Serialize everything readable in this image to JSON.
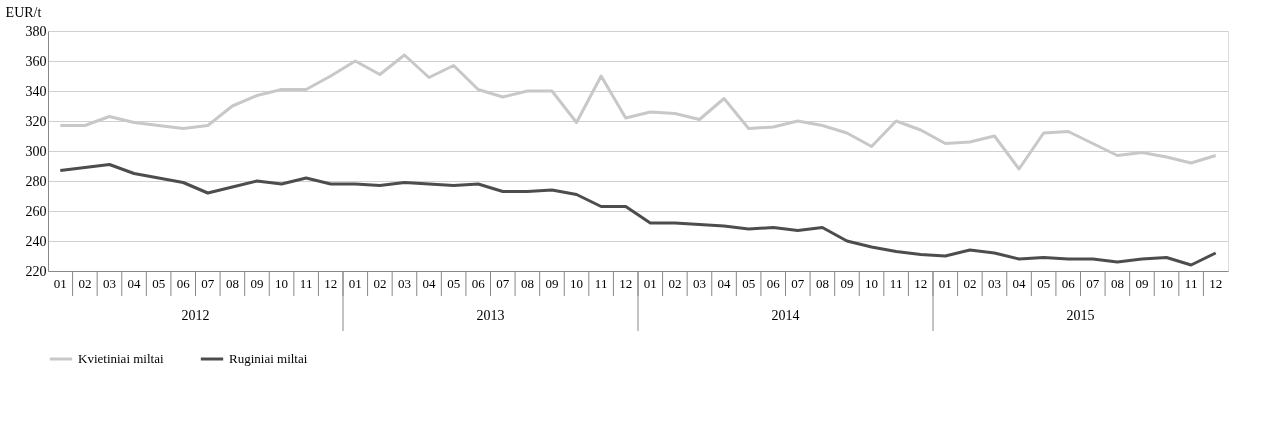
{
  "chart_data": {
    "type": "line",
    "ylabel": "EUR/t",
    "categories": [
      "01",
      "02",
      "03",
      "04",
      "05",
      "06",
      "07",
      "08",
      "09",
      "10",
      "11",
      "12",
      "01",
      "02",
      "03",
      "04",
      "05",
      "06",
      "07",
      "08",
      "09",
      "10",
      "11",
      "12",
      "01",
      "02",
      "03",
      "04",
      "05",
      "06",
      "07",
      "08",
      "09",
      "10",
      "11",
      "12",
      "01",
      "02",
      "03",
      "04",
      "05",
      "06",
      "07",
      "08",
      "09",
      "10",
      "11",
      "12"
    ],
    "series": [
      {
        "name": "Kvietiniai miltai",
        "color": "#c8c8c8",
        "values": [
          317,
          317,
          323,
          319,
          317,
          315,
          317,
          330,
          337,
          341,
          341,
          350,
          360,
          351,
          364,
          349,
          357,
          341,
          336,
          340,
          340,
          319,
          350,
          322,
          326,
          325,
          321,
          335,
          315,
          316,
          320,
          317,
          312,
          303,
          320,
          314,
          305,
          306,
          310,
          288,
          312,
          313,
          305,
          297,
          299,
          296,
          292,
          297
        ]
      },
      {
        "name": "Ruginiai miltai",
        "color": "#4d4d4d",
        "values": [
          287,
          289,
          291,
          285,
          282,
          279,
          272,
          276,
          280,
          278,
          282,
          278,
          278,
          277,
          279,
          278,
          277,
          278,
          273,
          273,
          274,
          271,
          263,
          263,
          252,
          252,
          251,
          250,
          248,
          249,
          247,
          249,
          240,
          236,
          233,
          231,
          230,
          234,
          232,
          228,
          229,
          228,
          228,
          226,
          228,
          229,
          224,
          232
        ]
      }
    ],
    "annotations": [
      "2012",
      "2013",
      "2014",
      "2015"
    ],
    "ylim": [
      220,
      380
    ],
    "yticks": [
      220,
      240,
      260,
      280,
      300,
      320,
      340,
      360,
      380
    ],
    "grid": "y",
    "legend": "bottom",
    "line_style": "solid",
    "marker": "none"
  }
}
